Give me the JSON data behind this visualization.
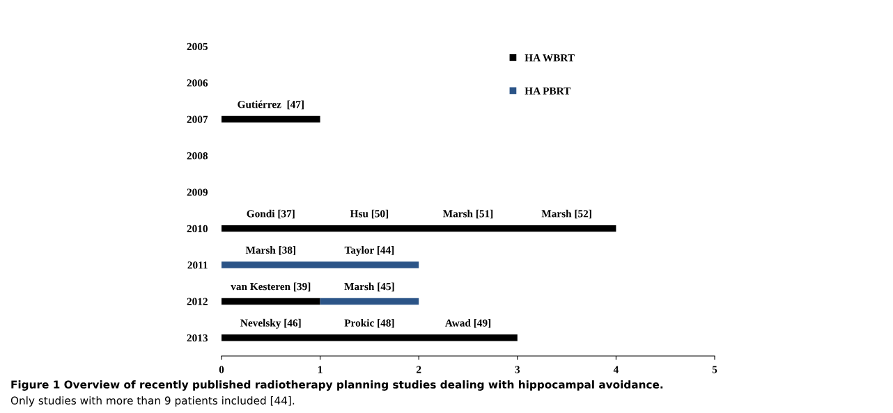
{
  "chart_data": {
    "type": "bar",
    "orientation": "horizontal",
    "stacked": true,
    "categories": [
      "2005",
      "2006",
      "2007",
      "2008",
      "2009",
      "2010",
      "2011",
      "2012",
      "2013"
    ],
    "series": [
      {
        "name": "HA WBRT",
        "color": "#000000",
        "values": [
          null,
          null,
          1,
          null,
          null,
          4,
          null,
          1,
          3
        ]
      },
      {
        "name": "HA PBRT",
        "color": "#2b5487",
        "values": [
          null,
          null,
          null,
          null,
          null,
          null,
          2,
          1,
          null
        ]
      }
    ],
    "xlim": [
      0,
      5
    ],
    "xticks": [
      0,
      1,
      2,
      3,
      4,
      5
    ],
    "grid": false,
    "legend": "top right",
    "marker": "square",
    "annotations": [
      "Gutiérrez  [47]",
      "Gondi [37]",
      "Hsu [50]",
      "Marsh [51]",
      "Marsh [52]",
      "Marsh [38]",
      "Taylor [44]",
      "van Kesteren [39]",
      "Marsh [45]",
      "Nevelsky [46]",
      "Prokic [48]",
      "Awad [49]",
      "Figure 1 Overview of recently published radiotherapy planning studies dealing with hippocampal avoidance.",
      "Only studies with more than 9 patients included [44]."
    ]
  }
}
